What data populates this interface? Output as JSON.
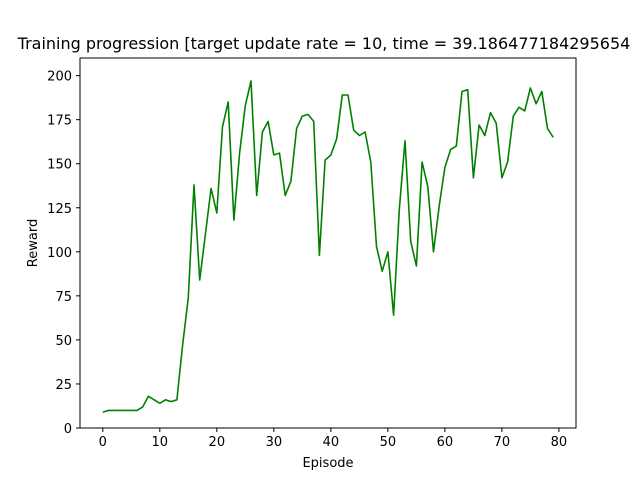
{
  "chart_data": {
    "type": "line",
    "title": "Training progression [target update rate = 10, time = 39.186477184295654",
    "xlabel": "Episode",
    "ylabel": "Reward",
    "xlim": [
      -4,
      83
    ],
    "ylim": [
      0,
      210
    ],
    "xticks": [
      0,
      10,
      20,
      30,
      40,
      50,
      60,
      70,
      80
    ],
    "yticks": [
      0,
      25,
      50,
      75,
      100,
      125,
      150,
      175,
      200
    ],
    "grid": false,
    "series": [
      {
        "color": "#008000",
        "x": [
          0,
          1,
          2,
          3,
          4,
          5,
          6,
          7,
          8,
          9,
          10,
          11,
          12,
          13,
          14,
          15,
          16,
          17,
          18,
          19,
          20,
          21,
          22,
          23,
          24,
          25,
          26,
          27,
          28,
          29,
          30,
          31,
          32,
          33,
          34,
          35,
          36,
          37,
          38,
          39,
          40,
          41,
          42,
          43,
          44,
          45,
          46,
          47,
          48,
          49,
          50,
          51,
          52,
          53,
          54,
          55,
          56,
          57,
          58,
          59,
          60,
          61,
          62,
          63,
          64,
          65,
          66,
          67,
          68,
          69,
          70,
          71,
          72,
          73,
          74,
          75,
          76,
          77,
          78,
          79
        ],
        "values": [
          9,
          10,
          10,
          10,
          10,
          10,
          10,
          12,
          18,
          16,
          14,
          16,
          15,
          16,
          47,
          74,
          138,
          84,
          110,
          136,
          122,
          171,
          185,
          118,
          156,
          183,
          197,
          132,
          168,
          174,
          155,
          156,
          132,
          140,
          170,
          177,
          178,
          174,
          98,
          152,
          155,
          164,
          189,
          189,
          169,
          166,
          168,
          151,
          103,
          89,
          100,
          64,
          124,
          163,
          106,
          92,
          151,
          137,
          100,
          126,
          148,
          158,
          160,
          191,
          192,
          142,
          172,
          166,
          179,
          173,
          142,
          151,
          177,
          182,
          180,
          193,
          184,
          191,
          170,
          165
        ]
      }
    ]
  }
}
